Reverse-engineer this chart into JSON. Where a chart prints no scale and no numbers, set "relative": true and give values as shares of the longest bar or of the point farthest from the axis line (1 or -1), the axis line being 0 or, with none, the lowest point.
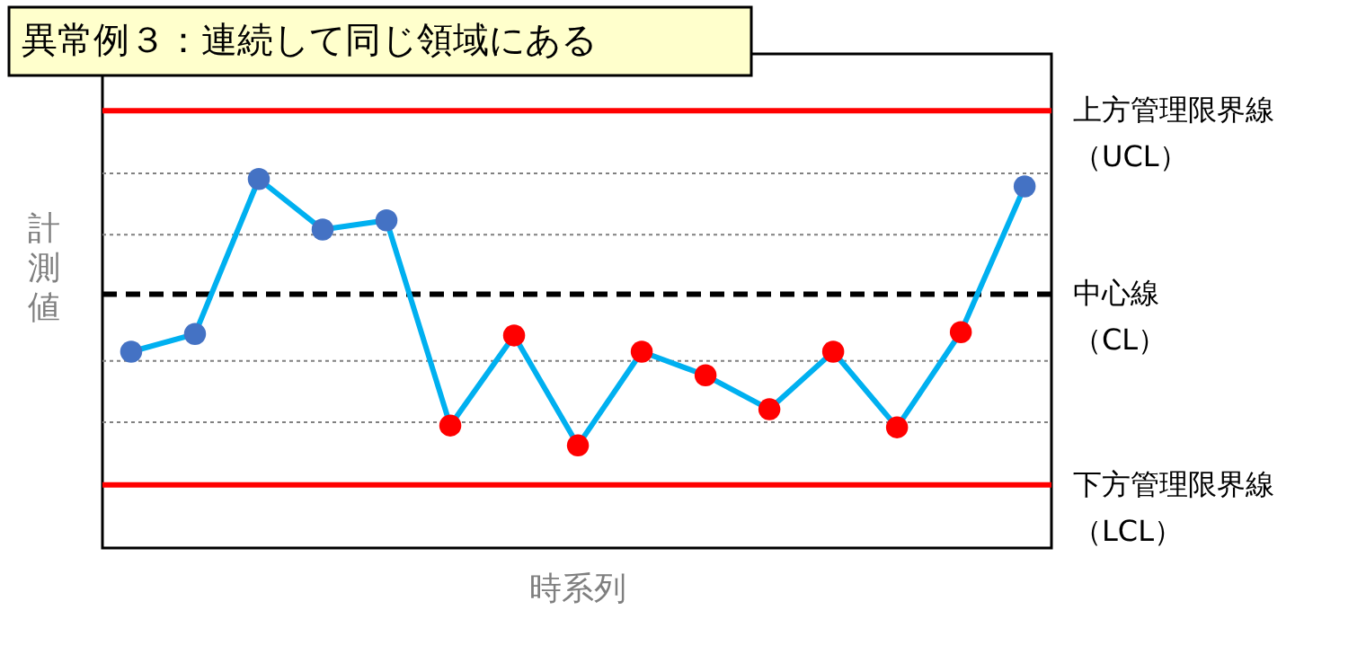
{
  "chart_data": {
    "type": "line",
    "title": "異常例３：連続して同じ領域にある",
    "xlabel": "時系列",
    "ylabel": "計測値",
    "relative": true,
    "tick_labels": false,
    "marker": "circle",
    "line_style": "solid",
    "categories": [
      null,
      null,
      null,
      null,
      null,
      null,
      null,
      null,
      null,
      null,
      null,
      null,
      null,
      null,
      null
    ],
    "series": [
      {
        "color": "#00b0f0",
        "colors": [
          "#4472c4",
          "#4472c4",
          "#4472c4",
          "#4472c4",
          "#4472c4",
          "#ff0000",
          "#ff0000",
          "#ff0000",
          "#ff0000",
          "#ff0000",
          "#ff0000",
          "#ff0000",
          "#ff0000",
          "#ff0000",
          "#4472c4"
        ],
        "values": [
          0.532,
          0.58,
          1,
          0.863,
          0.888,
          0.332,
          0.576,
          0.278,
          0.532,
          0.468,
          0.376,
          0.532,
          0.327,
          0.585,
          0.98
        ]
      }
    ],
    "ref_lines": [
      {
        "axis": "y",
        "value": 1.015,
        "color": "#808080",
        "line_style": "dotted"
      },
      {
        "axis": "y",
        "value": 0.849,
        "color": "#808080",
        "line_style": "dotted"
      },
      {
        "axis": "y",
        "value": 0.507,
        "color": "#808080",
        "line_style": "dotted"
      },
      {
        "axis": "y",
        "value": 0.341,
        "color": "#808080",
        "line_style": "dotted"
      },
      {
        "axis": "y",
        "value": 1.185,
        "label": "上方管理限界線（UCL）",
        "color": "#ff0000",
        "line_style": "solid"
      },
      {
        "axis": "y",
        "value": 0.688,
        "label": "中心線（CL）",
        "color": "#000000",
        "line_style": "dashed"
      },
      {
        "axis": "y",
        "value": 0.171,
        "label": "下方管理限界線（LCL）",
        "color": "#ff0000",
        "line_style": "solid"
      }
    ]
  }
}
